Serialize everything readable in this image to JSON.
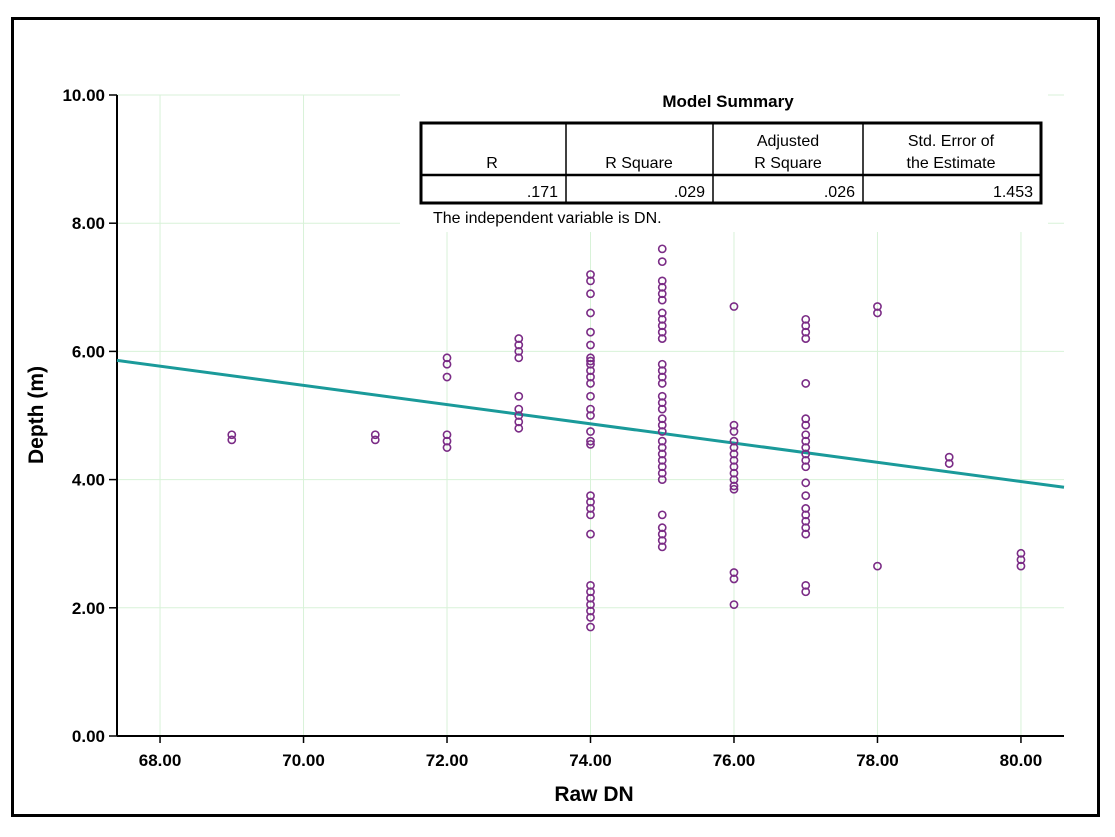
{
  "chart_data": {
    "type": "scatter",
    "xlabel": "Raw DN",
    "ylabel": "Depth (m)",
    "xlim": [
      67.4,
      80.6
    ],
    "ylim": [
      0,
      10
    ],
    "xticks": [
      68,
      70,
      72,
      74,
      76,
      78,
      80
    ],
    "xtick_labels": [
      "68.00",
      "70.00",
      "72.00",
      "74.00",
      "76.00",
      "78.00",
      "80.00"
    ],
    "yticks": [
      0,
      2,
      4,
      6,
      8,
      10
    ],
    "ytick_labels": [
      "0.00",
      "2.00",
      "4.00",
      "6.00",
      "8.00",
      "10.00"
    ],
    "grid": true,
    "colors": {
      "points": "#7b2c86",
      "line": "#1a9a9a",
      "grid": "#d8f2d8"
    },
    "fit_line": {
      "x": [
        67.4,
        80.6
      ],
      "y": [
        5.86,
        3.88
      ]
    },
    "points": [
      [
        69,
        4.7
      ],
      [
        69,
        4.62
      ],
      [
        71,
        4.7
      ],
      [
        71,
        4.62
      ],
      [
        72,
        5.9
      ],
      [
        72,
        5.8
      ],
      [
        72,
        5.6
      ],
      [
        72,
        4.7
      ],
      [
        72,
        4.6
      ],
      [
        72,
        4.5
      ],
      [
        73,
        6.2
      ],
      [
        73,
        6.1
      ],
      [
        73,
        6.0
      ],
      [
        73,
        5.9
      ],
      [
        73,
        5.3
      ],
      [
        73,
        5.1
      ],
      [
        73,
        5.0
      ],
      [
        73,
        4.9
      ],
      [
        73,
        4.8
      ],
      [
        74,
        7.2
      ],
      [
        74,
        7.1
      ],
      [
        74,
        6.9
      ],
      [
        74,
        6.6
      ],
      [
        74,
        6.3
      ],
      [
        74,
        6.1
      ],
      [
        74,
        5.9
      ],
      [
        74,
        5.85
      ],
      [
        74,
        5.8
      ],
      [
        74,
        5.7
      ],
      [
        74,
        5.6
      ],
      [
        74,
        5.5
      ],
      [
        74,
        5.3
      ],
      [
        74,
        5.1
      ],
      [
        74,
        5.0
      ],
      [
        74,
        4.75
      ],
      [
        74,
        4.6
      ],
      [
        74,
        4.55
      ],
      [
        74,
        3.75
      ],
      [
        74,
        3.65
      ],
      [
        74,
        3.55
      ],
      [
        74,
        3.45
      ],
      [
        74,
        3.15
      ],
      [
        74,
        2.35
      ],
      [
        74,
        2.25
      ],
      [
        74,
        2.15
      ],
      [
        74,
        2.05
      ],
      [
        74,
        1.95
      ],
      [
        74,
        1.85
      ],
      [
        74,
        1.7
      ],
      [
        75,
        7.6
      ],
      [
        75,
        7.4
      ],
      [
        75,
        7.1
      ],
      [
        75,
        7.0
      ],
      [
        75,
        6.9
      ],
      [
        75,
        6.8
      ],
      [
        75,
        6.6
      ],
      [
        75,
        6.5
      ],
      [
        75,
        6.4
      ],
      [
        75,
        6.3
      ],
      [
        75,
        6.2
      ],
      [
        75,
        5.8
      ],
      [
        75,
        5.7
      ],
      [
        75,
        5.6
      ],
      [
        75,
        5.5
      ],
      [
        75,
        5.3
      ],
      [
        75,
        5.2
      ],
      [
        75,
        5.1
      ],
      [
        75,
        4.95
      ],
      [
        75,
        4.85
      ],
      [
        75,
        4.75
      ],
      [
        75,
        4.6
      ],
      [
        75,
        4.5
      ],
      [
        75,
        4.4
      ],
      [
        75,
        4.3
      ],
      [
        75,
        4.2
      ],
      [
        75,
        4.1
      ],
      [
        75,
        4.0
      ],
      [
        75,
        3.45
      ],
      [
        75,
        3.25
      ],
      [
        75,
        3.15
      ],
      [
        75,
        3.05
      ],
      [
        75,
        2.95
      ],
      [
        76,
        6.7
      ],
      [
        76,
        4.85
      ],
      [
        76,
        4.75
      ],
      [
        76,
        4.6
      ],
      [
        76,
        4.5
      ],
      [
        76,
        4.4
      ],
      [
        76,
        4.3
      ],
      [
        76,
        4.2
      ],
      [
        76,
        4.1
      ],
      [
        76,
        4.0
      ],
      [
        76,
        3.9
      ],
      [
        76,
        3.85
      ],
      [
        76,
        2.55
      ],
      [
        76,
        2.45
      ],
      [
        76,
        2.05
      ],
      [
        77,
        6.5
      ],
      [
        77,
        6.4
      ],
      [
        77,
        6.3
      ],
      [
        77,
        6.2
      ],
      [
        77,
        5.5
      ],
      [
        77,
        4.95
      ],
      [
        77,
        4.85
      ],
      [
        77,
        4.7
      ],
      [
        77,
        4.6
      ],
      [
        77,
        4.5
      ],
      [
        77,
        4.4
      ],
      [
        77,
        4.3
      ],
      [
        77,
        4.2
      ],
      [
        77,
        3.95
      ],
      [
        77,
        3.75
      ],
      [
        77,
        3.55
      ],
      [
        77,
        3.45
      ],
      [
        77,
        3.35
      ],
      [
        77,
        3.25
      ],
      [
        77,
        3.15
      ],
      [
        77,
        2.35
      ],
      [
        77,
        2.25
      ],
      [
        78,
        6.7
      ],
      [
        78,
        6.6
      ],
      [
        78,
        2.65
      ],
      [
        79,
        4.35
      ],
      [
        79,
        4.25
      ],
      [
        80,
        2.85
      ],
      [
        80,
        2.75
      ],
      [
        80,
        2.65
      ]
    ]
  },
  "model_summary": {
    "title": "Model Summary",
    "headers": [
      [
        "",
        "R"
      ],
      [
        "",
        "R Square"
      ],
      [
        "Adjusted",
        "R Square"
      ],
      [
        "Std. Error of",
        "the Estimate"
      ]
    ],
    "values": [
      ".171",
      ".029",
      ".026",
      "1.453"
    ],
    "footnote": "The independent variable is DN."
  }
}
